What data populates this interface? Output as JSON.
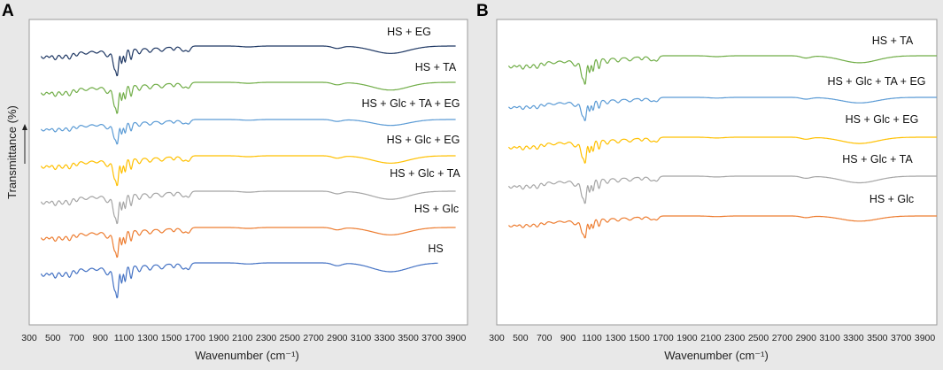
{
  "chart_data": [
    {
      "panel": "A",
      "type": "line",
      "title": "",
      "xlabel": "Wavenumber (cm⁻¹)",
      "ylabel": "Transmittance (%)",
      "xlim": [
        300,
        4000
      ],
      "xticks": [
        300,
        500,
        700,
        900,
        1100,
        1300,
        1500,
        1700,
        1900,
        2100,
        2300,
        2500,
        2700,
        2900,
        3100,
        3300,
        3500,
        3700,
        3900
      ],
      "grid": false,
      "legend": "inline labels",
      "series": [
        {
          "name": "HS + EG",
          "color": "#1f3864",
          "x_end": 3900
        },
        {
          "name": "HS + TA",
          "color": "#70ad47",
          "x_end": 3900
        },
        {
          "name": "HS + Glc + TA + EG",
          "color": "#5b9bd5",
          "x_end": 3900
        },
        {
          "name": "HS + Glc + EG",
          "color": "#ffc000",
          "x_end": 3900
        },
        {
          "name": "HS + Glc + TA",
          "color": "#a5a5a5",
          "x_end": 3900
        },
        {
          "name": "HS + Glc",
          "color": "#ed7d31",
          "x_end": 3900
        },
        {
          "name": "HS",
          "color": "#4472c4",
          "x_end": 3750
        }
      ]
    },
    {
      "panel": "B",
      "type": "line",
      "title": "",
      "xlabel": "Wavenumber (cm⁻¹)",
      "ylabel": "",
      "xlim": [
        300,
        4000
      ],
      "xticks": [
        300,
        500,
        700,
        900,
        1100,
        1300,
        1500,
        1700,
        1900,
        2100,
        2300,
        2500,
        2700,
        2900,
        3100,
        3300,
        3500,
        3700,
        3900
      ],
      "grid": false,
      "legend": "inline labels",
      "series": [
        {
          "name": "HS + TA",
          "color": "#70ad47",
          "x_end": 4000
        },
        {
          "name": "HS + Glc + TA + EG",
          "color": "#5b9bd5",
          "x_end": 4000
        },
        {
          "name": "HS + Glc + EG",
          "color": "#ffc000",
          "x_end": 4000
        },
        {
          "name": "HS + Glc + TA",
          "color": "#a5a5a5",
          "x_end": 4000
        },
        {
          "name": "HS + Glc",
          "color": "#ed7d31",
          "x_end": 4000
        }
      ]
    }
  ]
}
